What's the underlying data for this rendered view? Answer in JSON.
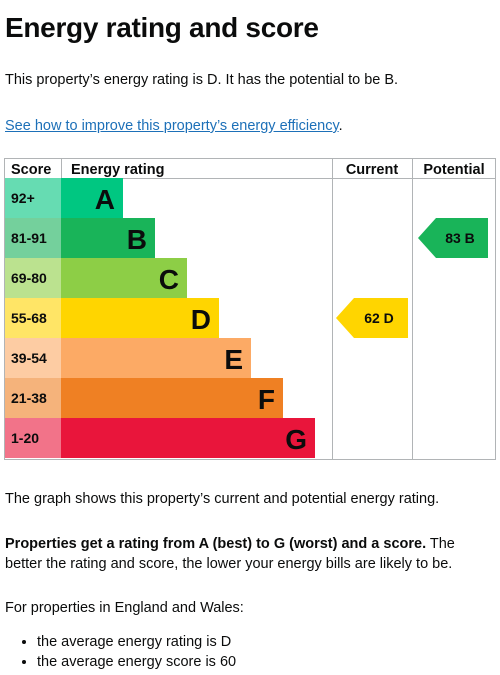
{
  "page": {
    "title": "Energy rating and score",
    "intro": "This property’s energy rating is D. It has the potential to be B.",
    "improve_link": "See how to improve this property’s energy efficiency",
    "improve_link_suffix": ".",
    "graph_caption": "The graph shows this property’s current and potential energy rating.",
    "rating_bold": "Properties get a rating from A (best) to G (worst) and a score.",
    "rating_rest": " The better the rating and score, the lower your energy bills are likely to be.",
    "region_intro": "For properties in England and Wales:",
    "bullets": [
      "the average energy rating is D",
      "the average energy score is 60"
    ]
  },
  "chart_data": {
    "type": "table",
    "headers": {
      "score": "Score",
      "rating": "Energy rating",
      "current": "Current",
      "potential": "Potential"
    },
    "bands": [
      {
        "letter": "A",
        "range": "92+",
        "color": "#00c781",
        "scoreBg": "#66dcb2"
      },
      {
        "letter": "B",
        "range": "81-91",
        "color": "#19b459",
        "scoreBg": "#74d09c"
      },
      {
        "letter": "C",
        "range": "69-80",
        "color": "#8dce46",
        "scoreBg": "#bbe28f"
      },
      {
        "letter": "D",
        "range": "55-68",
        "color": "#ffd500",
        "scoreBg": "#ffe566"
      },
      {
        "letter": "E",
        "range": "39-54",
        "color": "#fcaa65",
        "scoreBg": "#fdcca3"
      },
      {
        "letter": "F",
        "range": "21-38",
        "color": "#ef8023",
        "scoreBg": "#f5b37b"
      },
      {
        "letter": "G",
        "range": "1-20",
        "color": "#e9153b",
        "scoreBg": "#f27389"
      }
    ],
    "current": {
      "score": 62,
      "letter": "D",
      "label": "62  D",
      "color": "#ffd500"
    },
    "potential": {
      "score": 83,
      "letter": "B",
      "label": "83  B",
      "color": "#19b459"
    }
  }
}
